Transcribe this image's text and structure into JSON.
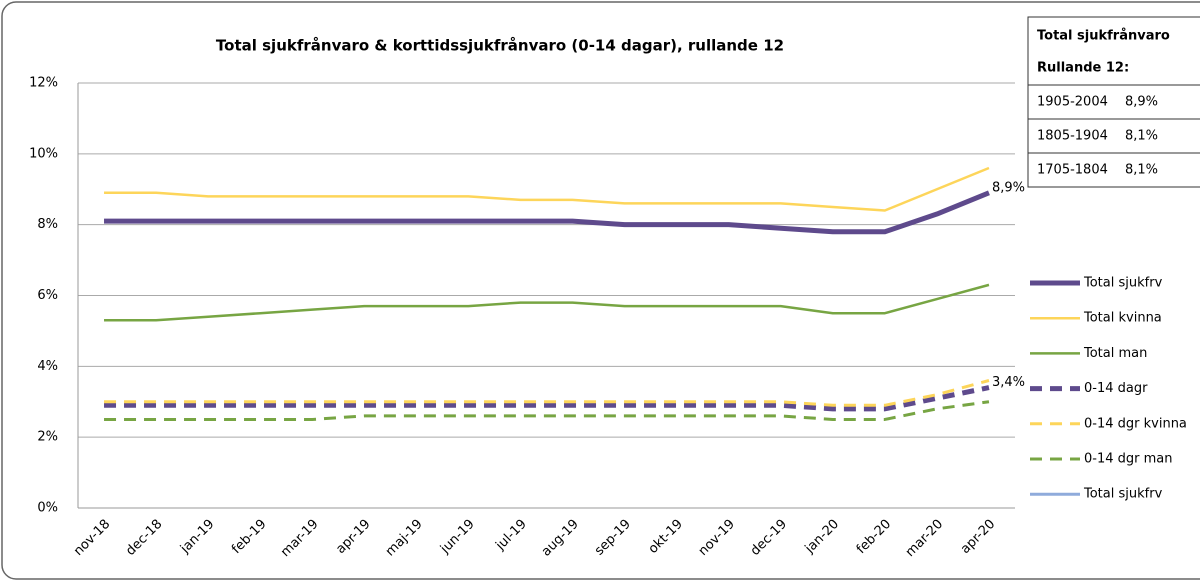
{
  "chart_data": {
    "type": "line",
    "title": "Total sjukfrånvaro & korttidssjukfrånvaro (0-14 dagar), rullande 12",
    "categories": [
      "nov-18",
      "dec-18",
      "jan-19",
      "feb-19",
      "mar-19",
      "apr-19",
      "maj-19",
      "jun-19",
      "jul-19",
      "aug-19",
      "sep-19",
      "okt-19",
      "nov-19",
      "dec-19",
      "jan-20",
      "feb-20",
      "mar-20",
      "apr-20"
    ],
    "series": [
      {
        "name": "Total sjukfrv",
        "color": "#5e4a8c",
        "dashed": false,
        "line_width": 5,
        "values": [
          8.1,
          8.1,
          8.1,
          8.1,
          8.1,
          8.1,
          8.1,
          8.1,
          8.1,
          8.1,
          8.0,
          8.0,
          8.0,
          7.9,
          7.8,
          7.8,
          8.3,
          8.9
        ],
        "value_labels": [
          null,
          null,
          null,
          null,
          null,
          null,
          null,
          null,
          null,
          null,
          null,
          null,
          null,
          null,
          null,
          null,
          null,
          "8,9%"
        ]
      },
      {
        "name": "Total kvinna",
        "color": "#fdd55a",
        "dashed": false,
        "line_width": 2.5,
        "values": [
          8.9,
          8.9,
          8.8,
          8.8,
          8.8,
          8.8,
          8.8,
          8.8,
          8.7,
          8.7,
          8.6,
          8.6,
          8.6,
          8.6,
          8.5,
          8.4,
          9.0,
          9.6
        ]
      },
      {
        "name": "Total man",
        "color": "#77a543",
        "dashed": false,
        "line_width": 2.5,
        "values": [
          5.3,
          5.3,
          5.4,
          5.5,
          5.6,
          5.7,
          5.7,
          5.7,
          5.8,
          5.8,
          5.7,
          5.7,
          5.7,
          5.7,
          5.5,
          5.5,
          5.9,
          6.3
        ]
      },
      {
        "name": "0-14 dagr",
        "color": "#5e4a8c",
        "dashed": true,
        "line_width": 5,
        "values": [
          2.9,
          2.9,
          2.9,
          2.9,
          2.9,
          2.9,
          2.9,
          2.9,
          2.9,
          2.9,
          2.9,
          2.9,
          2.9,
          2.9,
          2.8,
          2.8,
          3.1,
          3.4
        ],
        "value_labels": [
          null,
          null,
          null,
          null,
          null,
          null,
          null,
          null,
          null,
          null,
          null,
          null,
          null,
          null,
          null,
          null,
          null,
          "3,4%"
        ]
      },
      {
        "name": "0-14 dgr kvinna",
        "color": "#fdd55a",
        "dashed": true,
        "line_width": 3,
        "values": [
          3.0,
          3.0,
          3.0,
          3.0,
          3.0,
          3.0,
          3.0,
          3.0,
          3.0,
          3.0,
          3.0,
          3.0,
          3.0,
          3.0,
          2.9,
          2.9,
          3.2,
          3.6
        ]
      },
      {
        "name": "0-14 dgr man",
        "color": "#77a543",
        "dashed": true,
        "line_width": 3,
        "values": [
          2.5,
          2.5,
          2.5,
          2.5,
          2.5,
          2.6,
          2.6,
          2.6,
          2.6,
          2.6,
          2.6,
          2.6,
          2.6,
          2.6,
          2.5,
          2.5,
          2.8,
          3.0
        ]
      },
      {
        "name": "Total sjukfrv",
        "color": "#8fabdb",
        "dashed": false,
        "line_width": 3,
        "values": [
          null,
          null,
          null,
          null,
          null,
          null,
          null,
          null,
          null,
          null,
          null,
          null,
          null,
          null,
          null,
          null,
          null,
          null
        ]
      }
    ],
    "ylim": [
      0,
      12
    ],
    "yticks": [
      {
        "value": 0,
        "label": "0%"
      },
      {
        "value": 2,
        "label": "2%"
      },
      {
        "value": 4,
        "label": "4%"
      },
      {
        "value": 6,
        "label": "6%"
      },
      {
        "value": 8,
        "label": "8%"
      },
      {
        "value": 10,
        "label": "10%"
      },
      {
        "value": 12,
        "label": "12%"
      }
    ],
    "grid": true,
    "legend": "right"
  },
  "info_box": {
    "title": "Total sjukfrånvaro",
    "subtitle": "Rullande  12:",
    "rows": [
      [
        "1905-2004",
        "8,9%"
      ],
      [
        "1805-1904",
        "8,1%"
      ],
      [
        "1705-1804",
        "8,1%"
      ]
    ]
  }
}
